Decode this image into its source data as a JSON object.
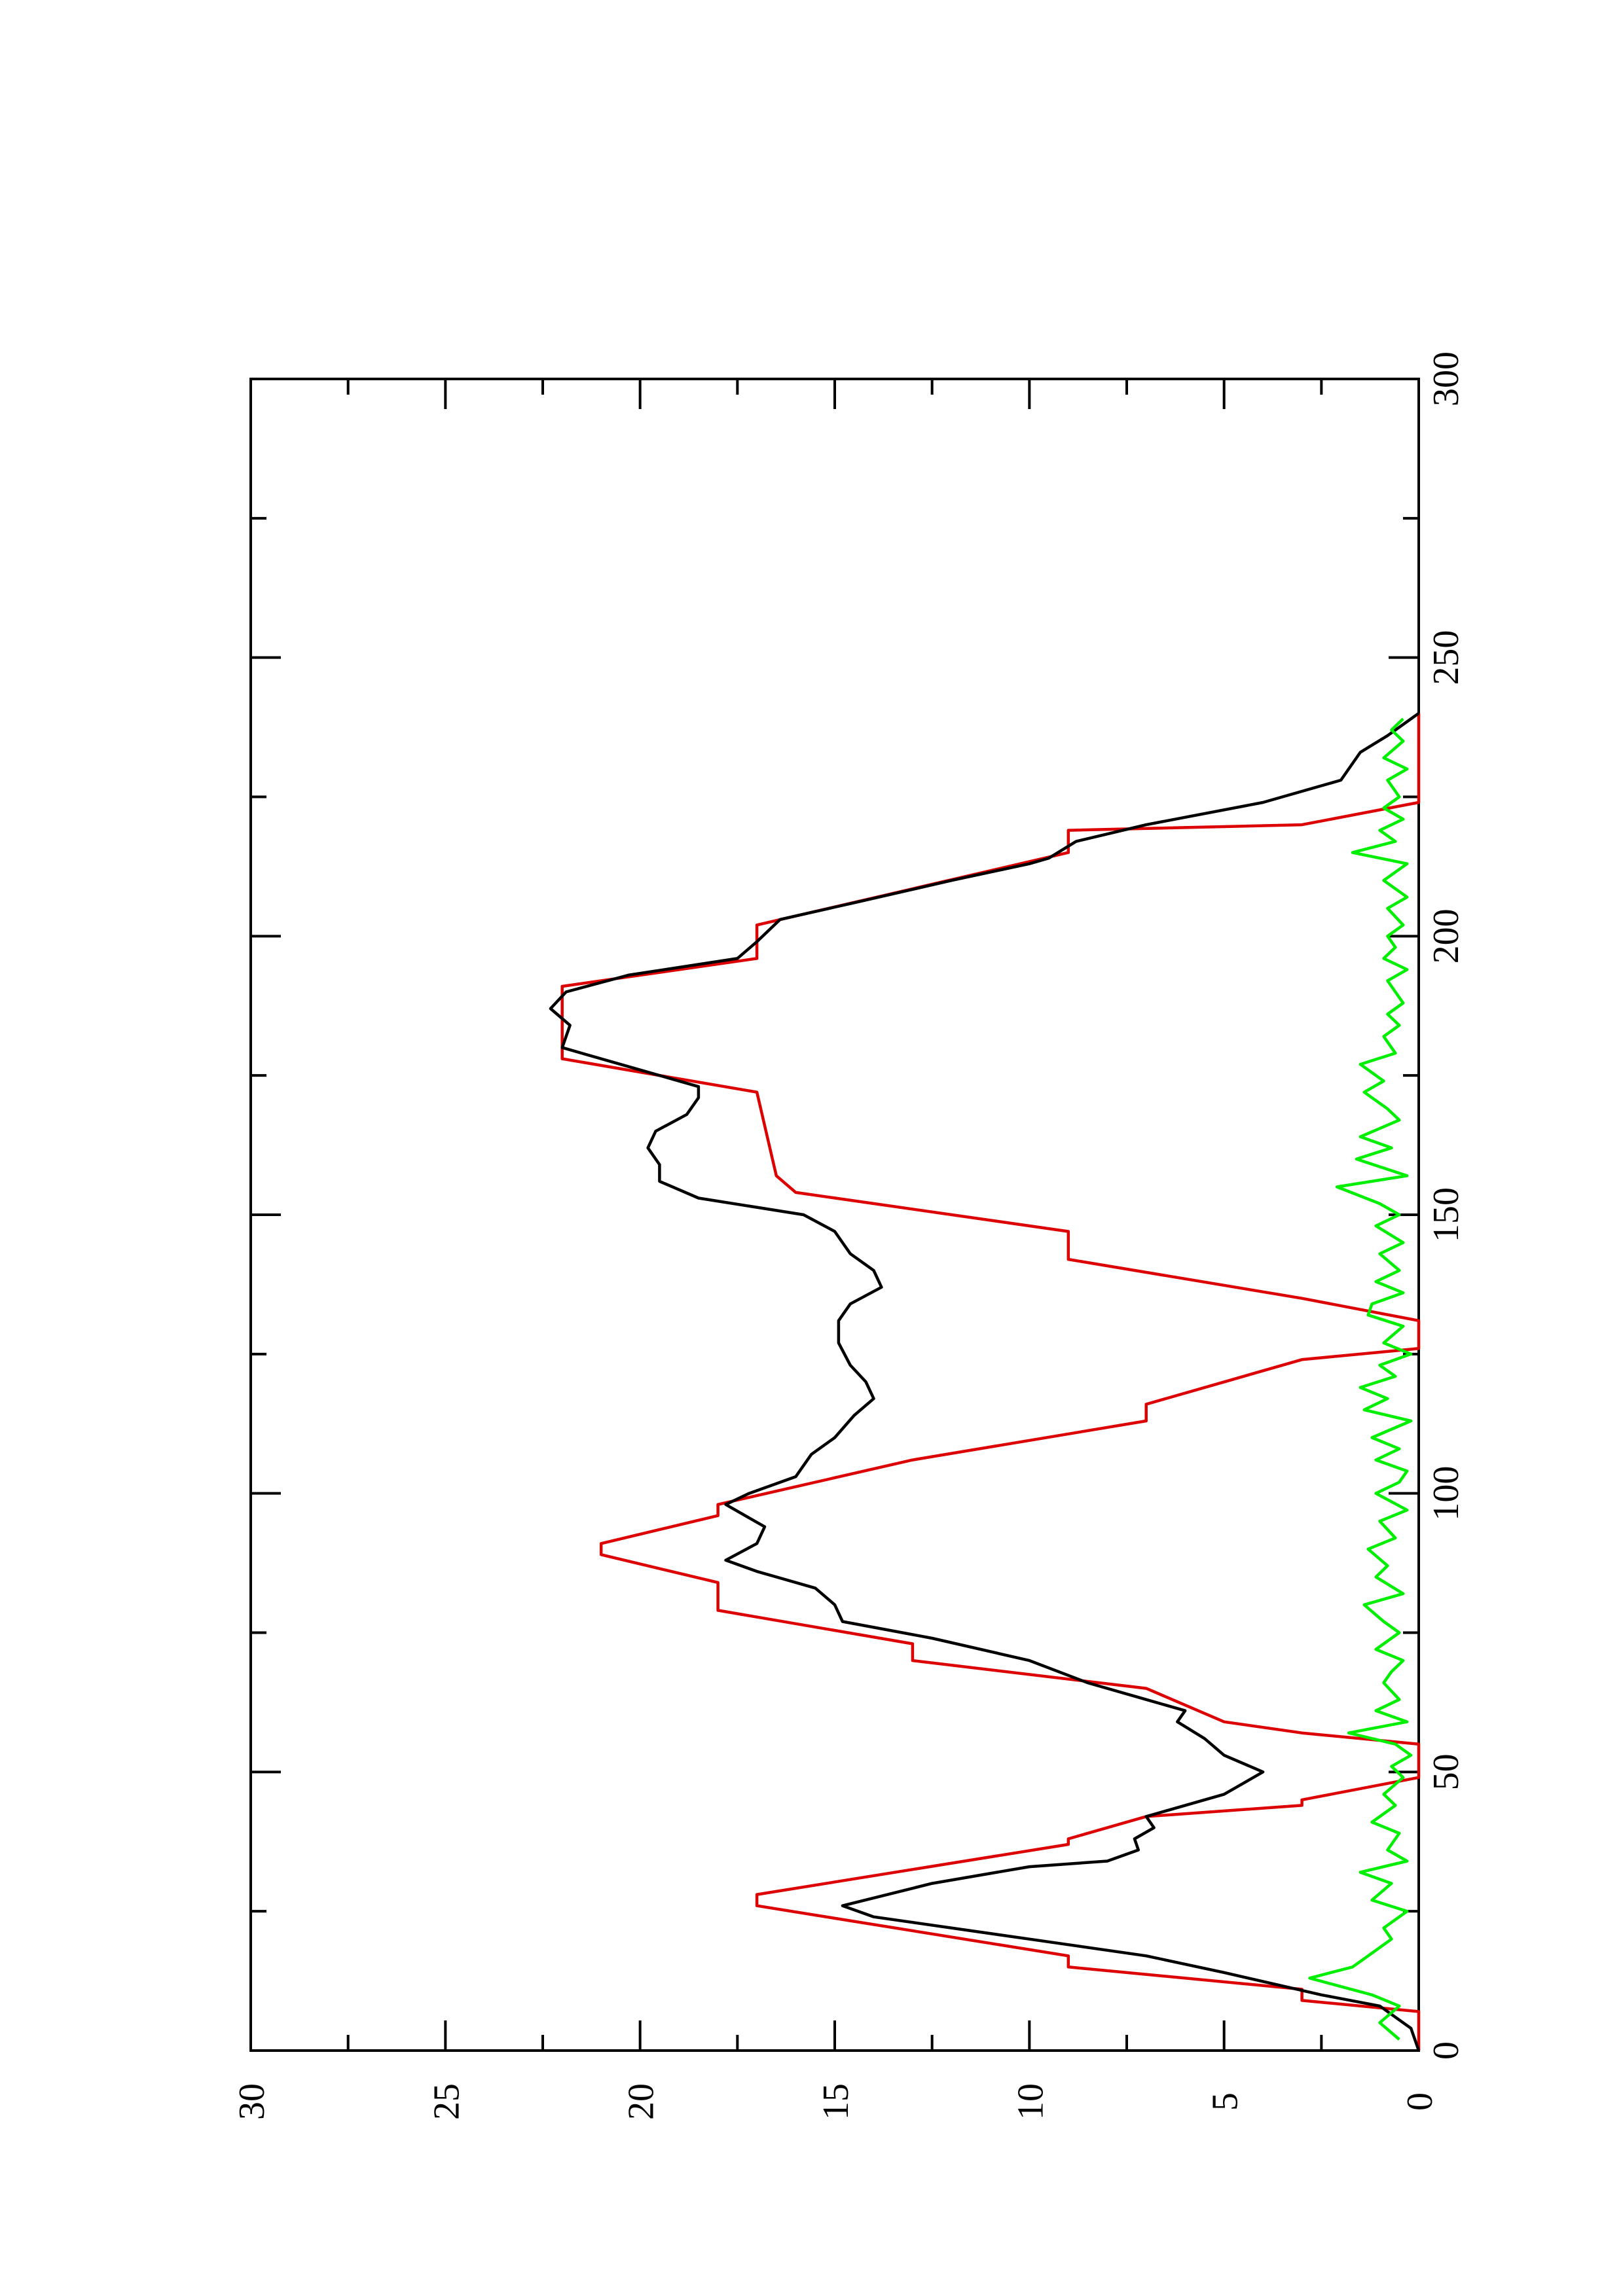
{
  "chart_data": {
    "type": "line",
    "orientation": "rotated-90-ccw",
    "title": "",
    "xlabel": "",
    "ylabel": "",
    "xlim": [
      0,
      300
    ],
    "ylim": [
      0,
      30
    ],
    "grid": false,
    "x_ticks": [
      "0",
      "50",
      "100",
      "150",
      "200",
      "250",
      "300"
    ],
    "y_ticks": [
      "0",
      "5",
      "10",
      "15",
      "20",
      "25",
      "30"
    ],
    "colors": {
      "step": "#dd0000",
      "smooth": "#000000",
      "noise": "#00ee00",
      "axes": "#000000"
    },
    "series": [
      {
        "color": "#dd0000",
        "points": [
          [
            0,
            0
          ],
          [
            7,
            0
          ],
          [
            9,
            3
          ],
          [
            11,
            3
          ],
          [
            15,
            9
          ],
          [
            17,
            9
          ],
          [
            26,
            17
          ],
          [
            28,
            17
          ],
          [
            37,
            9
          ],
          [
            38,
            9
          ],
          [
            42,
            7
          ],
          [
            44,
            3
          ],
          [
            45,
            3
          ],
          [
            49,
            0
          ],
          [
            55,
            0
          ],
          [
            57,
            3
          ],
          [
            59,
            5
          ],
          [
            65,
            7
          ],
          [
            70,
            13
          ],
          [
            73,
            13
          ],
          [
            79,
            18
          ],
          [
            84,
            18
          ],
          [
            89,
            21
          ],
          [
            91,
            21
          ],
          [
            96,
            18
          ],
          [
            98,
            18
          ],
          [
            106,
            13
          ],
          [
            113,
            7
          ],
          [
            116,
            7
          ],
          [
            120,
            5
          ],
          [
            124,
            3
          ],
          [
            126,
            0
          ],
          [
            131,
            0
          ],
          [
            135,
            3
          ],
          [
            142,
            9
          ],
          [
            147,
            9
          ],
          [
            154,
            16
          ],
          [
            157,
            16.5
          ],
          [
            172,
            17
          ],
          [
            178,
            22
          ],
          [
            191,
            22
          ],
          [
            196,
            17
          ],
          [
            202,
            17
          ],
          [
            215,
            9
          ],
          [
            219,
            9
          ],
          [
            220,
            3
          ],
          [
            224,
            0
          ],
          [
            240,
            0
          ]
        ]
      },
      {
        "color": "#000000",
        "points": [
          [
            0,
            0
          ],
          [
            4,
            0.2
          ],
          [
            8,
            1
          ],
          [
            10,
            2.5
          ],
          [
            14,
            5
          ],
          [
            17,
            7
          ],
          [
            20,
            10
          ],
          [
            24,
            14
          ],
          [
            26,
            14.8
          ],
          [
            30,
            12.5
          ],
          [
            33,
            10
          ],
          [
            34,
            8
          ],
          [
            36,
            7.2
          ],
          [
            38,
            7.3
          ],
          [
            40,
            6.8
          ],
          [
            42,
            7
          ],
          [
            44,
            6
          ],
          [
            46,
            5
          ],
          [
            48,
            4.5
          ],
          [
            50,
            4
          ],
          [
            53,
            5
          ],
          [
            56,
            5.5
          ],
          [
            59,
            6.2
          ],
          [
            61,
            6
          ],
          [
            63,
            7
          ],
          [
            66,
            8.5
          ],
          [
            70,
            10
          ],
          [
            74,
            12.5
          ],
          [
            77,
            14.8
          ],
          [
            80,
            15
          ],
          [
            83,
            15.5
          ],
          [
            86,
            17
          ],
          [
            88,
            17.8
          ],
          [
            91,
            17
          ],
          [
            94,
            16.8
          ],
          [
            98,
            17.8
          ],
          [
            100,
            17.2
          ],
          [
            103,
            16
          ],
          [
            107,
            15.6
          ],
          [
            110,
            15
          ],
          [
            114,
            14.5
          ],
          [
            117,
            14
          ],
          [
            120,
            14.2
          ],
          [
            123,
            14.6
          ],
          [
            127,
            14.9
          ],
          [
            131,
            14.9
          ],
          [
            134,
            14.6
          ],
          [
            137,
            13.8
          ],
          [
            140,
            14
          ],
          [
            143,
            14.6
          ],
          [
            147,
            15
          ],
          [
            150,
            15.8
          ],
          [
            153,
            18.5
          ],
          [
            156,
            19.5
          ],
          [
            159,
            19.5
          ],
          [
            162,
            19.8
          ],
          [
            165,
            19.6
          ],
          [
            168,
            18.8
          ],
          [
            171,
            18.5
          ],
          [
            173,
            18.5
          ],
          [
            176,
            20
          ],
          [
            180,
            22
          ],
          [
            184,
            21.8
          ],
          [
            187,
            22.3
          ],
          [
            190,
            21.9
          ],
          [
            193,
            20.3
          ],
          [
            196,
            17.5
          ],
          [
            199,
            17
          ],
          [
            203,
            16.4
          ],
          [
            206,
            14.5
          ],
          [
            210,
            12
          ],
          [
            213,
            10
          ],
          [
            214,
            9.5
          ],
          [
            217,
            8.8
          ],
          [
            220,
            7
          ],
          [
            224,
            4
          ],
          [
            228,
            2
          ],
          [
            233,
            1.5
          ],
          [
            236,
            0.8
          ],
          [
            240,
            0
          ]
        ]
      },
      {
        "color": "#00ee00",
        "points": [
          [
            2,
            0.5
          ],
          [
            5,
            1
          ],
          [
            8,
            0.5
          ],
          [
            10,
            1.2
          ],
          [
            13,
            2.8
          ],
          [
            15,
            1.7
          ],
          [
            18,
            1.1
          ],
          [
            20,
            0.7
          ],
          [
            22,
            0.9
          ],
          [
            25,
            0.3
          ],
          [
            27,
            1.2
          ],
          [
            30,
            0.7
          ],
          [
            32,
            1.5
          ],
          [
            34,
            0.3
          ],
          [
            36,
            0.8
          ],
          [
            39,
            0.5
          ],
          [
            41,
            1.2
          ],
          [
            44,
            0.6
          ],
          [
            46,
            0.9
          ],
          [
            49,
            0.4
          ],
          [
            51,
            0.7
          ],
          [
            53,
            0.2
          ],
          [
            55,
            0.6
          ],
          [
            57,
            1.8
          ],
          [
            59,
            0.3
          ],
          [
            61,
            1.1
          ],
          [
            63,
            0.5
          ],
          [
            66,
            0.9
          ],
          [
            68,
            0.7
          ],
          [
            70,
            0.4
          ],
          [
            72,
            1.1
          ],
          [
            75,
            0.5
          ],
          [
            77,
            0.9
          ],
          [
            80,
            1.4
          ],
          [
            82,
            0.4
          ],
          [
            85,
            1.1
          ],
          [
            87,
            0.8
          ],
          [
            90,
            1.3
          ],
          [
            92,
            0.6
          ],
          [
            95,
            1.0
          ],
          [
            97,
            0.3
          ],
          [
            100,
            1.1
          ],
          [
            102,
            0.5
          ],
          [
            104,
            0.3
          ],
          [
            106,
            1.1
          ],
          [
            108,
            0.5
          ],
          [
            110,
            1.2
          ],
          [
            113,
            0.2
          ],
          [
            115,
            1.4
          ],
          [
            117,
            0.8
          ],
          [
            119,
            1.5
          ],
          [
            121,
            0.6
          ],
          [
            123,
            1.0
          ],
          [
            125,
            0.2
          ],
          [
            127,
            0.9
          ],
          [
            130,
            0.4
          ],
          [
            132,
            1.3
          ],
          [
            134,
            1.2
          ],
          [
            136,
            0.4
          ],
          [
            138,
            1.1
          ],
          [
            140,
            0.5
          ],
          [
            143,
            1.0
          ],
          [
            145,
            0.4
          ],
          [
            148,
            1.1
          ],
          [
            150,
            0.5
          ],
          [
            152,
            1.0
          ],
          [
            155,
            2.1
          ],
          [
            157,
            0.3
          ],
          [
            160,
            1.6
          ],
          [
            162,
            0.7
          ],
          [
            164,
            1.5
          ],
          [
            167,
            0.5
          ],
          [
            169,
            0.8
          ],
          [
            172,
            1.4
          ],
          [
            174,
            0.9
          ],
          [
            177,
            1.5
          ],
          [
            179,
            0.6
          ],
          [
            182,
            0.9
          ],
          [
            184,
            0.5
          ],
          [
            186,
            0.8
          ],
          [
            188,
            0.4
          ],
          [
            190,
            0.6
          ],
          [
            192,
            0.8
          ],
          [
            194,
            0.3
          ],
          [
            196,
            0.9
          ],
          [
            198,
            0.6
          ],
          [
            200,
            0.8
          ],
          [
            202,
            0.4
          ],
          [
            205,
            0.8
          ],
          [
            207,
            0.3
          ],
          [
            210,
            0.9
          ],
          [
            213,
            0.3
          ],
          [
            215,
            1.7
          ],
          [
            217,
            0.6
          ],
          [
            219,
            1.0
          ],
          [
            221,
            0.4
          ],
          [
            223,
            0.9
          ],
          [
            225,
            0.5
          ],
          [
            228,
            0.8
          ],
          [
            230,
            0.3
          ],
          [
            232,
            0.9
          ],
          [
            235,
            0.4
          ],
          [
            237,
            0.7
          ],
          [
            239,
            0.4
          ]
        ]
      }
    ]
  }
}
